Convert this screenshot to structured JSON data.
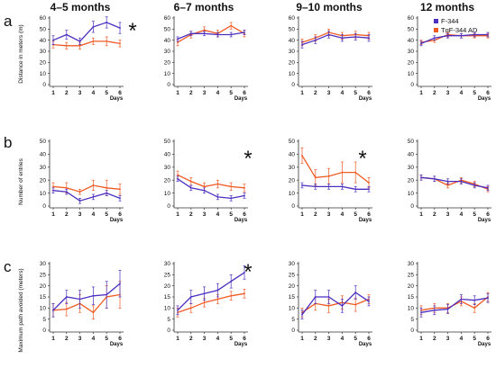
{
  "figure": {
    "column_titles": [
      "4–5 months",
      "6–7 months",
      "9–10 months",
      "12 months"
    ],
    "row_letters": [
      "a",
      "b",
      "c"
    ],
    "row_ylabels": [
      "Distance in meters (m)",
      "Number of entries",
      "Maximum path avoided (meters)"
    ],
    "x_axis_label": "Days",
    "significance_marker": "*",
    "legend": [
      {
        "name": "F-344",
        "color": "#4b2fc0"
      },
      {
        "name": "TgF-344 AD",
        "color": "#f05a23"
      }
    ]
  },
  "chart_data": [
    {
      "type": "line",
      "panel": "a",
      "column": "4–5 months",
      "title": "4–5 months",
      "ylabel": "Distance in meters (m)",
      "xlabel": "Days",
      "x": [
        1,
        2,
        3,
        4,
        5,
        6
      ],
      "ylim": [
        0,
        60
      ],
      "yticks": [
        0,
        10,
        20,
        30,
        40,
        50,
        60
      ],
      "significant": true,
      "series": [
        {
          "name": "F-344",
          "values": [
            40,
            45,
            39,
            52,
            56,
            51
          ],
          "err": [
            4,
            4,
            3,
            5,
            5,
            5
          ]
        },
        {
          "name": "TgF-344 AD",
          "values": [
            36,
            35,
            35,
            39,
            39,
            37
          ],
          "err": [
            3,
            3,
            3,
            3,
            4,
            3
          ]
        }
      ]
    },
    {
      "type": "line",
      "panel": "a",
      "column": "6–7 months",
      "title": "6–7 months",
      "xlabel": "Days",
      "x": [
        1,
        2,
        3,
        4,
        5,
        6
      ],
      "ylim": [
        0,
        60
      ],
      "yticks": [
        0,
        10,
        20,
        30,
        40,
        50,
        60
      ],
      "significant": false,
      "series": [
        {
          "name": "F-344",
          "values": [
            41,
            46,
            46,
            45,
            45,
            47
          ],
          "err": [
            2,
            2,
            2,
            2,
            2,
            2
          ]
        },
        {
          "name": "TgF-344 AD",
          "values": [
            38,
            45,
            49,
            46,
            53,
            46
          ],
          "err": [
            3,
            3,
            3,
            3,
            3,
            3
          ]
        }
      ]
    },
    {
      "type": "line",
      "panel": "a",
      "column": "9–10 months",
      "title": "9–10 months",
      "xlabel": "Days",
      "x": [
        1,
        2,
        3,
        4,
        5,
        6
      ],
      "ylim": [
        0,
        60
      ],
      "yticks": [
        0,
        10,
        20,
        30,
        40,
        50,
        60
      ],
      "significant": false,
      "series": [
        {
          "name": "F-344",
          "values": [
            36,
            40,
            45,
            42,
            43,
            42
          ],
          "err": [
            3,
            3,
            3,
            3,
            3,
            3
          ]
        },
        {
          "name": "TgF-344 AD",
          "values": [
            38,
            42,
            47,
            44,
            45,
            44
          ],
          "err": [
            3,
            3,
            3,
            3,
            3,
            3
          ]
        }
      ]
    },
    {
      "type": "line",
      "panel": "a",
      "column": "12 months",
      "title": "12 months",
      "xlabel": "Days",
      "x": [
        1,
        2,
        3,
        4,
        5,
        6
      ],
      "ylim": [
        0,
        60
      ],
      "yticks": [
        0,
        10,
        20,
        30,
        40,
        50,
        60
      ],
      "significant": false,
      "series": [
        {
          "name": "F-344",
          "values": [
            37,
            42,
            44,
            44,
            45,
            45
          ],
          "err": [
            2,
            2,
            2,
            2,
            2,
            2
          ]
        },
        {
          "name": "TgF-344 AD",
          "values": [
            38,
            40,
            45,
            44,
            44,
            44
          ],
          "err": [
            2,
            2,
            2,
            2,
            2,
            2
          ]
        }
      ]
    },
    {
      "type": "line",
      "panel": "b",
      "column": "4–5 months",
      "ylabel": "Number of entries",
      "xlabel": "Days",
      "x": [
        1,
        2,
        3,
        4,
        5,
        6
      ],
      "ylim": [
        0,
        50
      ],
      "yticks": [
        0,
        10,
        20,
        30,
        40,
        50
      ],
      "significant": false,
      "series": [
        {
          "name": "F-344",
          "values": [
            12,
            11,
            4,
            7,
            10,
            6
          ],
          "err": [
            2,
            2,
            2,
            2,
            2,
            2
          ]
        },
        {
          "name": "TgF-344 AD",
          "values": [
            15,
            14,
            11,
            16,
            14,
            13
          ],
          "err": [
            3,
            4,
            2,
            4,
            6,
            4
          ]
        }
      ]
    },
    {
      "type": "line",
      "panel": "b",
      "column": "6–7 months",
      "xlabel": "Days",
      "x": [
        1,
        2,
        3,
        4,
        5,
        6
      ],
      "ylim": [
        0,
        50
      ],
      "yticks": [
        0,
        10,
        20,
        30,
        40,
        50
      ],
      "significant": true,
      "series": [
        {
          "name": "F-344",
          "values": [
            21,
            14,
            12,
            7,
            6,
            8
          ],
          "err": [
            2,
            2,
            2,
            2,
            2,
            2
          ]
        },
        {
          "name": "TgF-344 AD",
          "values": [
            24,
            19,
            15,
            17,
            15,
            14
          ],
          "err": [
            3,
            3,
            3,
            3,
            3,
            3
          ]
        }
      ]
    },
    {
      "type": "line",
      "panel": "b",
      "column": "9–10 months",
      "xlabel": "Days",
      "x": [
        1,
        2,
        3,
        4,
        5,
        6
      ],
      "ylim": [
        0,
        50
      ],
      "yticks": [
        0,
        10,
        20,
        30,
        40,
        50
      ],
      "significant": true,
      "series": [
        {
          "name": "F-344",
          "values": [
            16,
            15,
            15,
            15,
            13,
            13
          ],
          "err": [
            2,
            2,
            2,
            2,
            2,
            2
          ]
        },
        {
          "name": "TgF-344 AD",
          "values": [
            39,
            22,
            23,
            26,
            26,
            18
          ],
          "err": [
            6,
            6,
            6,
            8,
            8,
            4
          ]
        }
      ]
    },
    {
      "type": "line",
      "panel": "b",
      "column": "12 months",
      "xlabel": "Days",
      "x": [
        1,
        2,
        3,
        4,
        5,
        6
      ],
      "ylim": [
        0,
        50
      ],
      "yticks": [
        0,
        10,
        20,
        30,
        40,
        50
      ],
      "significant": false,
      "series": [
        {
          "name": "F-344",
          "values": [
            22,
            21,
            19,
            19,
            16,
            14
          ],
          "err": [
            2,
            2,
            2,
            2,
            2,
            2
          ]
        },
        {
          "name": "TgF-344 AD",
          "values": [
            22,
            21,
            16,
            20,
            17,
            13
          ],
          "err": [
            2,
            2,
            2,
            2,
            2,
            2
          ]
        }
      ]
    },
    {
      "type": "line",
      "panel": "c",
      "column": "4–5 months",
      "ylabel": "Maximum path avoided (meters)",
      "xlabel": "Days",
      "x": [
        1,
        2,
        3,
        4,
        5,
        6
      ],
      "ylim": [
        0,
        30
      ],
      "yticks": [
        0,
        5,
        10,
        15,
        20,
        25,
        30
      ],
      "significant": false,
      "series": [
        {
          "name": "F-344",
          "values": [
            9,
            15,
            14,
            15.5,
            16,
            21
          ],
          "err": [
            3,
            3,
            4,
            4,
            6,
            6
          ]
        },
        {
          "name": "TgF-344 AD",
          "values": [
            9,
            9.5,
            12,
            8,
            15,
            16
          ],
          "err": [
            3,
            3,
            4,
            3,
            5,
            6
          ]
        }
      ]
    },
    {
      "type": "line",
      "panel": "c",
      "column": "6–7 months",
      "xlabel": "Days",
      "x": [
        1,
        2,
        3,
        4,
        5,
        6
      ],
      "ylim": [
        0,
        30
      ],
      "yticks": [
        0,
        5,
        10,
        15,
        20,
        25,
        30
      ],
      "significant": true,
      "series": [
        {
          "name": "F-344",
          "values": [
            9,
            15,
            16.5,
            18,
            22,
            26
          ],
          "err": [
            2,
            3,
            3,
            3,
            3,
            3
          ]
        },
        {
          "name": "TgF-344 AD",
          "values": [
            8,
            10,
            12.5,
            14,
            15.5,
            16.5
          ],
          "err": [
            2,
            2,
            2,
            2,
            2,
            2
          ]
        }
      ]
    },
    {
      "type": "line",
      "panel": "c",
      "column": "9–10 months",
      "xlabel": "Days",
      "x": [
        1,
        2,
        3,
        4,
        5,
        6
      ],
      "ylim": [
        0,
        30
      ],
      "yticks": [
        0,
        5,
        10,
        15,
        20,
        25,
        30
      ],
      "significant": false,
      "series": [
        {
          "name": "F-344",
          "values": [
            7,
            15,
            15,
            11,
            17,
            13
          ],
          "err": [
            2,
            3,
            3,
            3,
            3,
            2
          ]
        },
        {
          "name": "TgF-344 AD",
          "values": [
            8,
            12,
            11,
            12.5,
            11.5,
            14
          ],
          "err": [
            2,
            3,
            3,
            3,
            3,
            2
          ]
        }
      ]
    },
    {
      "type": "line",
      "panel": "c",
      "column": "12 months",
      "xlabel": "Days",
      "x": [
        1,
        2,
        3,
        4,
        5,
        6
      ],
      "ylim": [
        0,
        30
      ],
      "yticks": [
        0,
        5,
        10,
        15,
        20,
        25,
        30
      ],
      "significant": false,
      "series": [
        {
          "name": "F-344",
          "values": [
            8,
            9,
            9.5,
            14,
            13.5,
            14.5
          ],
          "err": [
            2,
            2,
            2,
            2,
            2,
            2
          ]
        },
        {
          "name": "TgF-344 AD",
          "values": [
            9,
            10,
            10,
            13,
            10,
            15
          ],
          "err": [
            2,
            2,
            2,
            2,
            2,
            2
          ]
        }
      ]
    }
  ]
}
